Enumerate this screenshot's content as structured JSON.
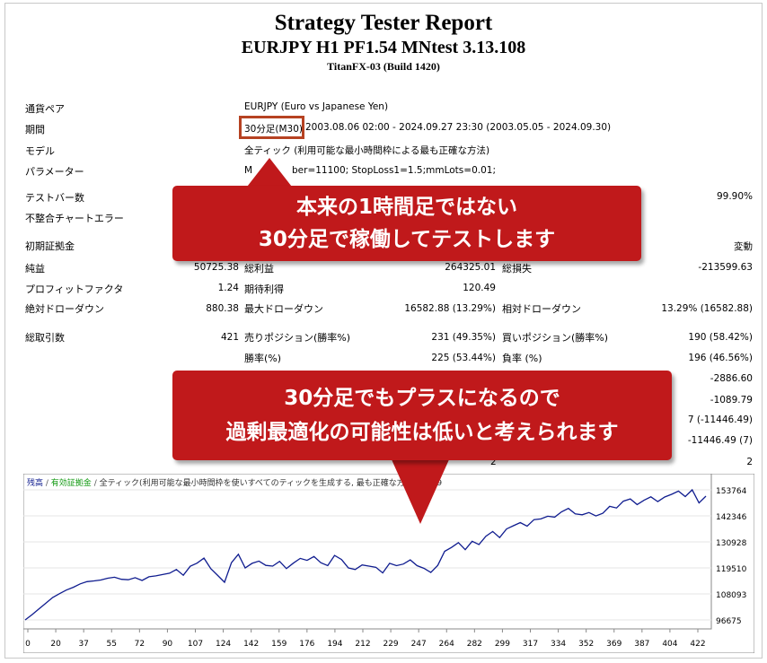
{
  "report": {
    "title": "Strategy Tester Report",
    "subtitle": "EURJPY H1 PF1.54 MNtest 3.13.108",
    "build": "TitanFX-03 (Build 1420)"
  },
  "settings": {
    "symbol_label": "通貨ペア",
    "symbol_value": "EURJPY (Euro vs Japanese Yen)",
    "period_label": "期間",
    "period_tf": "30分足(M30)",
    "period_value": "2003.08.06 02:00 - 2024.09.27 23:30 (2003.05.05 - 2024.09.30)",
    "model_label": "モデル",
    "model_value": "全ティック (利用可能な最小時間枠による最も正確な方法)",
    "params_label": "パラメーター",
    "params_value_a": "M",
    "params_value_b": "ber=11100; StopLoss1=1.5;mmLots=0.01;",
    "bars_label": "テストバー数",
    "quality_value": "99.90%",
    "mismatch_label": "不整合チャートエラー",
    "deposit_label": "初期証拠金",
    "spread_value": "変動"
  },
  "stats": {
    "net_label": "純益",
    "net_value": "50725.38",
    "gross_profit_label": "総利益",
    "gross_profit_value": "264325.01",
    "gross_loss_label": "総損失",
    "gross_loss_value": "-213599.63",
    "pf_label": "プロフィットファクタ",
    "pf_value": "1.24",
    "expected_label": "期待利得",
    "expected_value": "120.49",
    "abs_dd_label": "絶対ドローダウン",
    "abs_dd_value": "880.38",
    "max_dd_label": "最大ドローダウン",
    "max_dd_value": "16582.88 (13.29%)",
    "rel_dd_label": "相対ドローダウン",
    "rel_dd_value": "13.29% (16582.88)",
    "trades_label": "総取引数",
    "trades_value": "421",
    "short_label": "売りポジション(勝率%)",
    "short_value": "231 (49.35%)",
    "long_label": "買いポジション(勝率%)",
    "long_value": "190 (58.42%)",
    "win_label": "勝率(%)",
    "win_value": "225 (53.44%)",
    "loss_label": "負率 (%)",
    "loss_value": "196 (46.56%)",
    "r1": "-2886.60",
    "r2": "-1089.79",
    "r3": "7 (-11446.49)",
    "r4": "-11446.49 (7)",
    "r5_left": "2",
    "r5_right": "2"
  },
  "callouts": {
    "c1_line1": "本来の1時間足ではない",
    "c1_line2": "30分足で稼働してテストします",
    "c2_line1": "30分足でもプラスになるので",
    "c2_line2": "過剰最適化の可能性は低いと考えられます"
  },
  "chart_data": {
    "type": "line",
    "legend_balance": "残高",
    "legend_equity": "有効証拠金",
    "legend_model": "全ティック(利用可能な最小時間枠を使いすべてのティックを生成する, 最も正確な方法)",
    "legend_quality": "99.9",
    "x_ticks": [
      "0",
      "20",
      "37",
      "55",
      "72",
      "90",
      "107",
      "124",
      "142",
      "159",
      "176",
      "194",
      "212",
      "229",
      "247",
      "264",
      "282",
      "299",
      "317",
      "334",
      "352",
      "369",
      "387",
      "404",
      "422"
    ],
    "y_ticks": [
      "153764",
      "142346",
      "130928",
      "119510",
      "108093",
      "96675"
    ],
    "ylim": [
      96675,
      153764
    ],
    "xlim": [
      0,
      422
    ],
    "series": [
      {
        "values": [
          96675,
          99000,
          101500,
          104000,
          106500,
          108200,
          109800,
          111000,
          112500,
          113500,
          113800,
          114200,
          115000,
          115400,
          114500,
          114300,
          115200,
          114000,
          115600,
          116000,
          116600,
          117200,
          118800,
          116300,
          120200,
          121600,
          123800,
          119200,
          116200,
          113200,
          121800,
          125500,
          119500,
          121500,
          122500,
          120600,
          120300,
          122400,
          119200,
          121600,
          123700,
          122800,
          124500,
          121800,
          120500,
          125000,
          123200,
          119500,
          118800,
          120800,
          120300,
          119800,
          117300,
          121500,
          120500,
          121200,
          123000,
          120500,
          119300,
          117500,
          120600,
          126800,
          128500,
          130600,
          127500,
          131200,
          129800,
          133400,
          135500,
          132800,
          136600,
          138000,
          139400,
          137800,
          140700,
          141000,
          142200,
          141800,
          144100,
          145600,
          143200,
          142800,
          143800,
          142300,
          143500,
          146500,
          145800,
          148800,
          149800,
          147300,
          149200,
          150700,
          148600,
          150600,
          151800,
          153200,
          150800,
          153764,
          148000,
          151000
        ]
      }
    ]
  }
}
